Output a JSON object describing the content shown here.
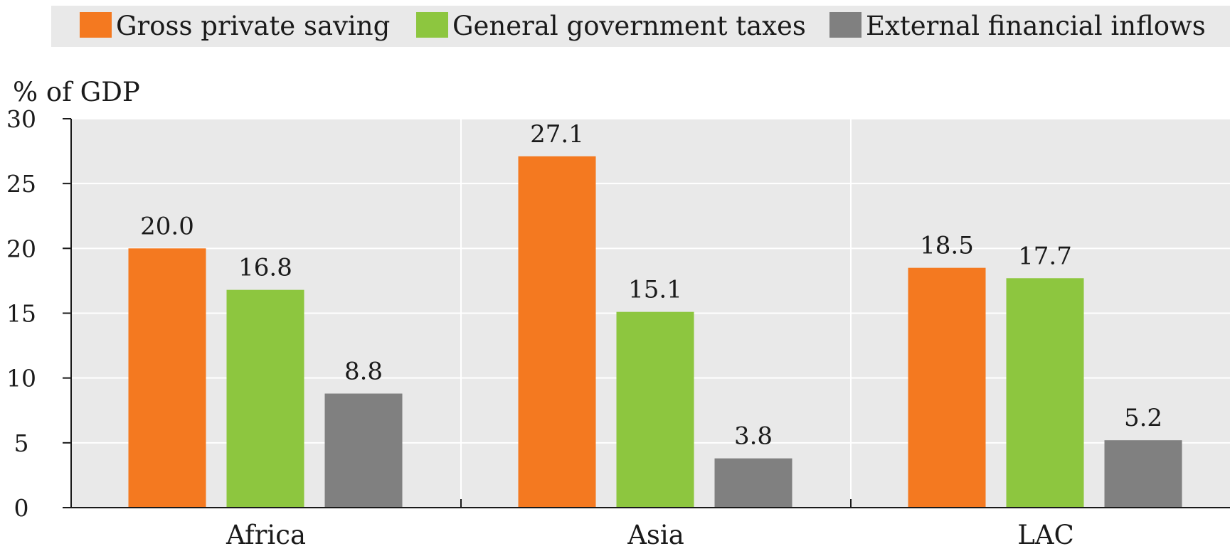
{
  "chart_data": {
    "type": "bar",
    "title": "",
    "ylabel": "% of GDP",
    "xlabel": "",
    "categories": [
      "Africa",
      "Asia",
      "LAC"
    ],
    "series": [
      {
        "name": "Gross private saving",
        "color": "#f47920",
        "values": [
          20.0,
          27.1,
          18.5
        ],
        "labels": [
          "20.0",
          "27.1",
          "18.5"
        ]
      },
      {
        "name": "General government taxes",
        "color": "#8dc63f",
        "values": [
          16.8,
          15.1,
          17.7
        ],
        "labels": [
          "16.8",
          "15.1",
          "17.7"
        ]
      },
      {
        "name": "External financial inflows",
        "color": "#808080",
        "values": [
          8.8,
          3.8,
          5.2
        ],
        "labels": [
          "8.8",
          "3.8",
          "5.2"
        ]
      }
    ],
    "ylim": [
      0,
      30
    ],
    "yticks": [
      "0",
      "5",
      "10",
      "15",
      "20",
      "25",
      "30"
    ],
    "grid": true,
    "legend_position": "top",
    "plot_background": "#e9e9e9",
    "legend_background": "#e9e9e9"
  }
}
